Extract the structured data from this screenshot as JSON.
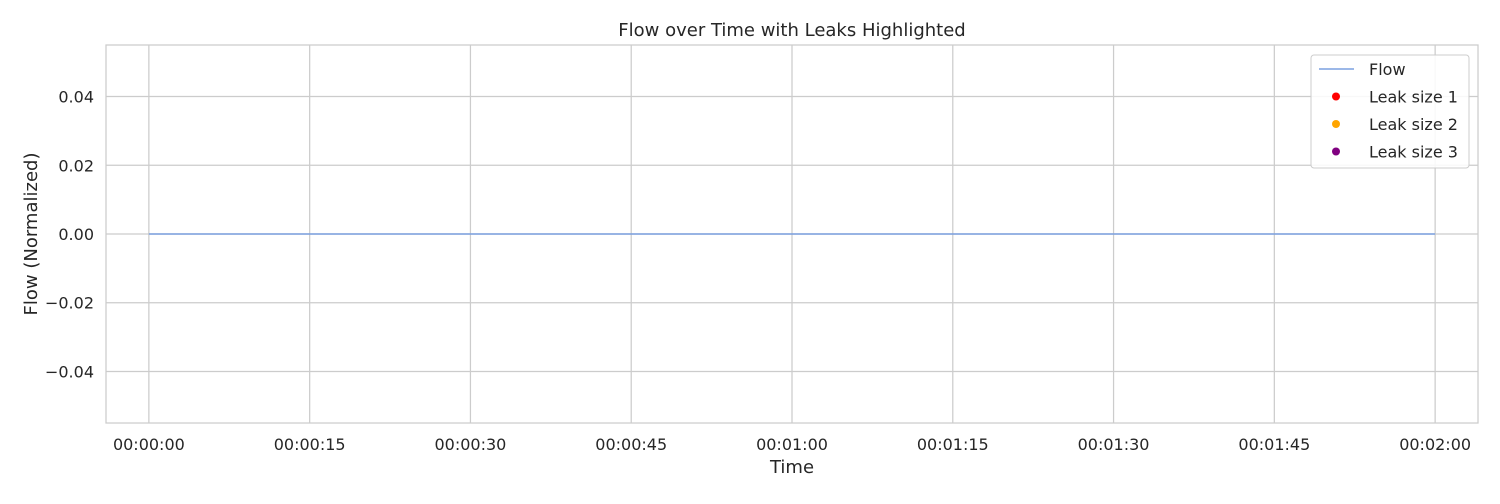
{
  "chart_data": {
    "type": "line",
    "title": "Flow over Time with Leaks Highlighted",
    "xlabel": "Time",
    "ylabel": "Flow (Normalized)",
    "x_ticks": [
      "00:00:00",
      "00:00:15",
      "00:00:30",
      "00:00:45",
      "00:01:00",
      "00:01:15",
      "00:01:30",
      "00:01:45",
      "00:02:00"
    ],
    "y_ticks": [
      -0.04,
      -0.02,
      0.0,
      0.02,
      0.04
    ],
    "y_tick_labels": [
      "−0.04",
      "−0.02",
      "0.00",
      "0.02",
      "0.04"
    ],
    "xlim": [
      "-00:00:04",
      "00:02:04"
    ],
    "ylim": [
      -0.055,
      0.055
    ],
    "grid": true,
    "legend_position": "top-right",
    "series": [
      {
        "name": "Flow",
        "kind": "line",
        "color": "#7ba0e0",
        "x": [
          "00:00:00",
          "00:02:00"
        ],
        "y": [
          0.0,
          0.0
        ]
      },
      {
        "name": "Leak size 1",
        "kind": "scatter",
        "color": "#ff0000",
        "x": [],
        "y": []
      },
      {
        "name": "Leak size 2",
        "kind": "scatter",
        "color": "#ffa500",
        "x": [],
        "y": []
      },
      {
        "name": "Leak size 3",
        "kind": "scatter",
        "color": "#800080",
        "x": [],
        "y": []
      }
    ]
  }
}
